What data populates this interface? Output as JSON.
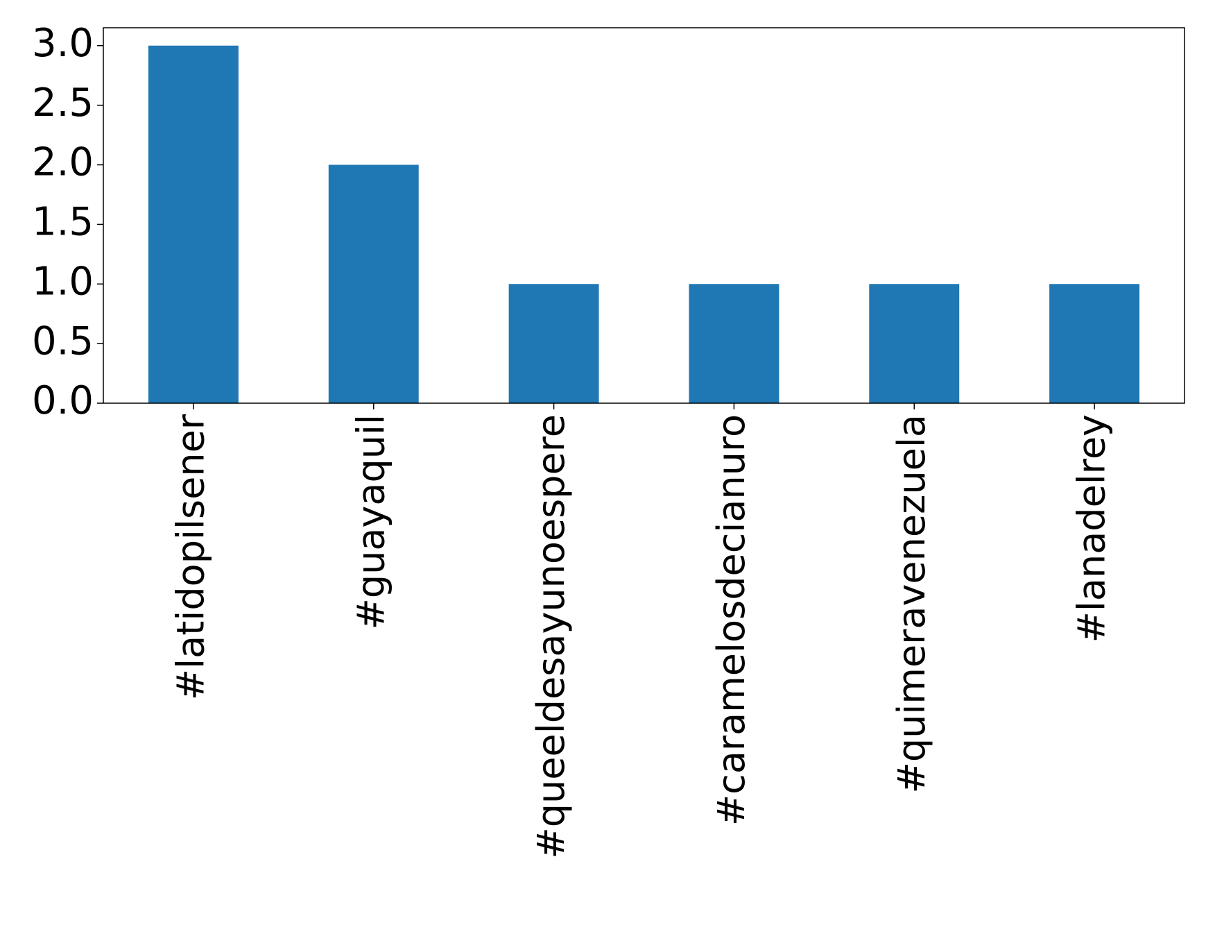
{
  "chart_data": {
    "type": "bar",
    "categories": [
      "#latidopilsener",
      "#guayaquil",
      "#queeldesayunoespere",
      "#caramelosdecianuro",
      "#quimeravenezuela",
      "#lanadelrey"
    ],
    "values": [
      3,
      2,
      1,
      1,
      1,
      1
    ],
    "color": "#1f77b4",
    "ylim": [
      0,
      3.15
    ],
    "yticks": [
      {
        "value": 0,
        "label": "0.0"
      },
      0.5,
      {
        "value": 1,
        "label": "1.0"
      },
      1.5,
      {
        "value": 2,
        "label": "2.0"
      },
      2.5,
      {
        "value": 3,
        "label": "3.0"
      }
    ],
    "grid": false
  }
}
